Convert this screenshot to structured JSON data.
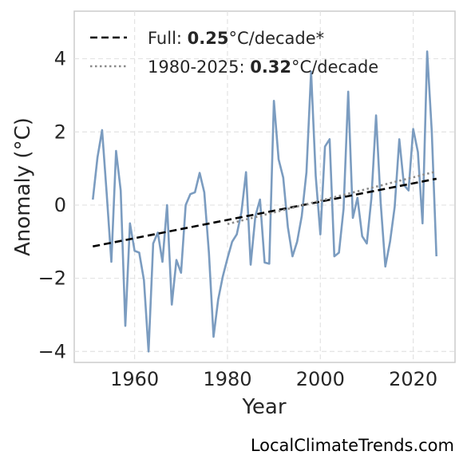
{
  "chart_data": {
    "type": "line",
    "xlabel": "Year",
    "ylabel": "Anomaly (°C)",
    "xlim": [
      1947,
      2029
    ],
    "ylim": [
      -4.3,
      5.3
    ],
    "xticks": [
      1960,
      1980,
      2000,
      2020
    ],
    "yticks": [
      -4,
      -2,
      0,
      2,
      4
    ],
    "ytick_labels": [
      "−4",
      "−2",
      "0",
      "2",
      "4"
    ],
    "grid": true,
    "legend_position": "top-left",
    "series": [
      {
        "x": [
          1951,
          1952,
          1953,
          1954,
          1955,
          1956,
          1957,
          1958,
          1959,
          1960,
          1961,
          1962,
          1963,
          1964,
          1965,
          1966,
          1967,
          1968,
          1969,
          1970,
          1971,
          1972,
          1973,
          1974,
          1975,
          1976,
          1977,
          1978,
          1979,
          1980,
          1981,
          1982,
          1983,
          1984,
          1985,
          1986,
          1987,
          1988,
          1989,
          1990,
          1991,
          1992,
          1993,
          1994,
          1995,
          1996,
          1997,
          1998,
          1999,
          2000,
          2001,
          2002,
          2003,
          2004,
          2005,
          2006,
          2007,
          2008,
          2009,
          2010,
          2011,
          2012,
          2013,
          2014,
          2015,
          2016,
          2017,
          2018,
          2019,
          2020,
          2021,
          2022,
          2023,
          2024,
          2025
        ],
        "values": [
          0.15,
          1.3,
          2.05,
          0.3,
          -1.55,
          1.48,
          0.4,
          -3.3,
          -0.5,
          -1.25,
          -1.3,
          -2.05,
          -4.0,
          -1.05,
          -0.75,
          -1.55,
          0.0,
          -2.72,
          -1.5,
          -1.85,
          0.0,
          0.3,
          0.35,
          0.88,
          0.35,
          -1.3,
          -3.6,
          -2.58,
          -1.95,
          -1.45,
          -1.0,
          -0.8,
          -0.2,
          0.9,
          -1.63,
          -0.3,
          0.15,
          -1.57,
          -1.6,
          2.85,
          1.25,
          0.75,
          -0.6,
          -1.4,
          -1.0,
          -0.3,
          0.9,
          3.65,
          0.8,
          -0.8,
          1.6,
          1.8,
          -1.4,
          -1.3,
          -0.1,
          3.1,
          -0.35,
          0.2,
          -0.85,
          -1.05,
          0.2,
          2.45,
          0.05,
          -1.68,
          -1.0,
          -0.05,
          1.8,
          0.55,
          0.4,
          2.08,
          1.45,
          -0.5,
          4.2,
          2.0,
          -1.4
        ],
        "color": "#7b9cc0"
      }
    ],
    "trends": [
      {
        "label_prefix": "Full: ",
        "label_value": "0.25",
        "label_suffix": "°C/decade*",
        "x": [
          1951,
          2025
        ],
        "y": [
          -1.13,
          0.72
        ],
        "color": "#000000",
        "style": "dashed"
      },
      {
        "label_prefix": "1980-2025: ",
        "label_value": "0.32",
        "label_suffix": "°C/decade",
        "x": [
          1980,
          2025
        ],
        "y": [
          -0.52,
          0.92
        ],
        "color": "#8a8a8a",
        "style": "dotted"
      }
    ]
  },
  "credit": "LocalClimateTrends.com"
}
